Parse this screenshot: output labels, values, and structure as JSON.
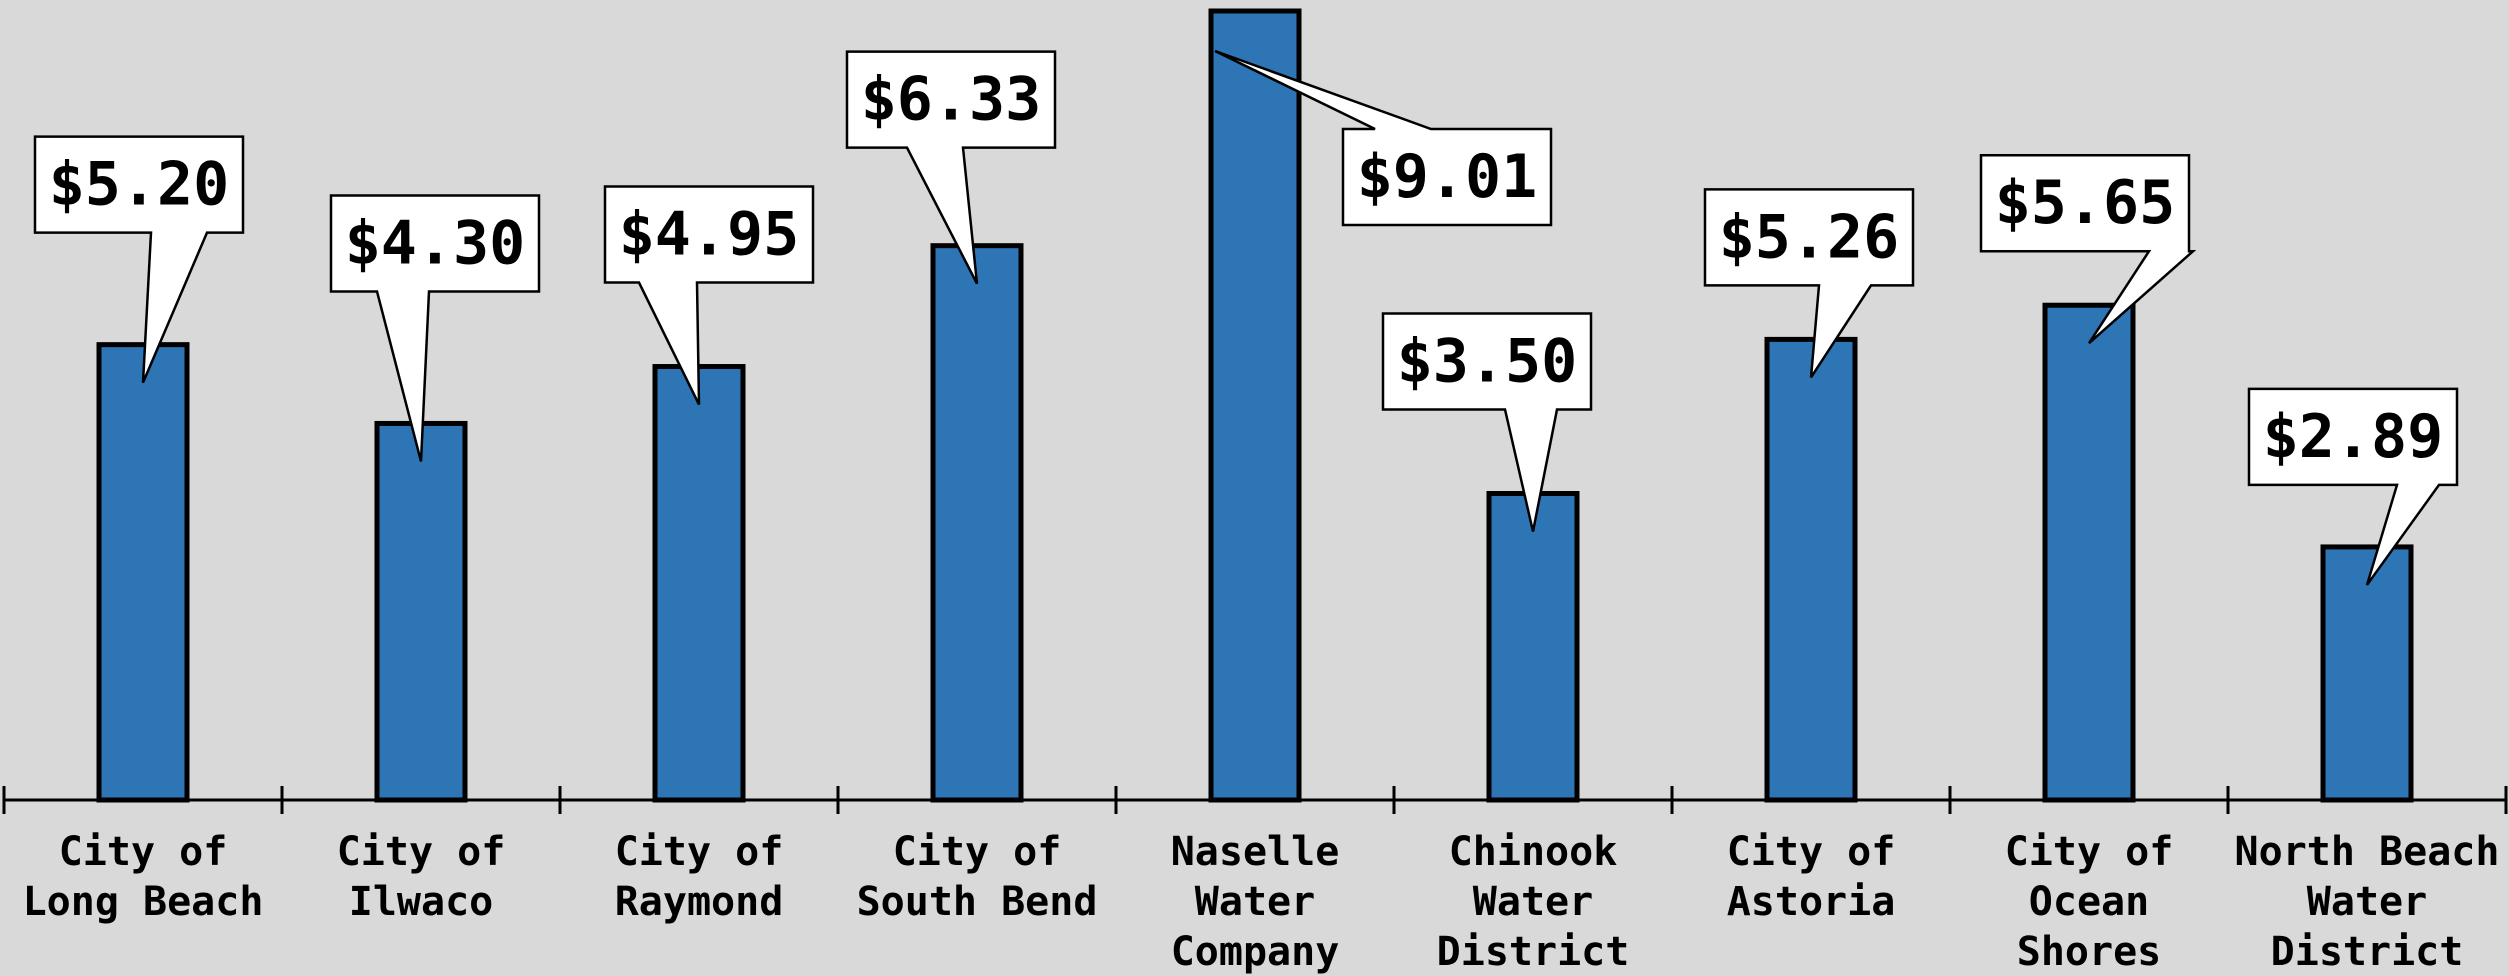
{
  "chart_data": {
    "type": "bar",
    "categories": [
      [
        "City of",
        "Long Beach"
      ],
      [
        "City of",
        "Ilwaco"
      ],
      [
        "City of",
        "Raymond"
      ],
      [
        "City of",
        "South Bend"
      ],
      [
        "Naselle",
        "Water",
        "Company"
      ],
      [
        "Chinook",
        "Water",
        "District"
      ],
      [
        "City of",
        "Astoria"
      ],
      [
        "City of",
        "Ocean",
        "Shores"
      ],
      [
        "North Beach",
        "Water",
        "District"
      ]
    ],
    "values": [
      5.2,
      4.3,
      4.95,
      6.33,
      9.01,
      3.5,
      5.26,
      5.65,
      2.89
    ],
    "data_labels": [
      "$5.20",
      "$4.30",
      "$4.95",
      "$6.33",
      "$9.01",
      "$3.50",
      "$5.26",
      "$5.65",
      "$2.89"
    ],
    "title": "",
    "xlabel": "",
    "ylabel": "",
    "ylim": [
      0,
      9.01
    ],
    "grid": false,
    "legend": "none",
    "colors": {
      "bar": "#2e75b6",
      "background": "#d9d9d9",
      "callout": "#ffffff"
    }
  }
}
